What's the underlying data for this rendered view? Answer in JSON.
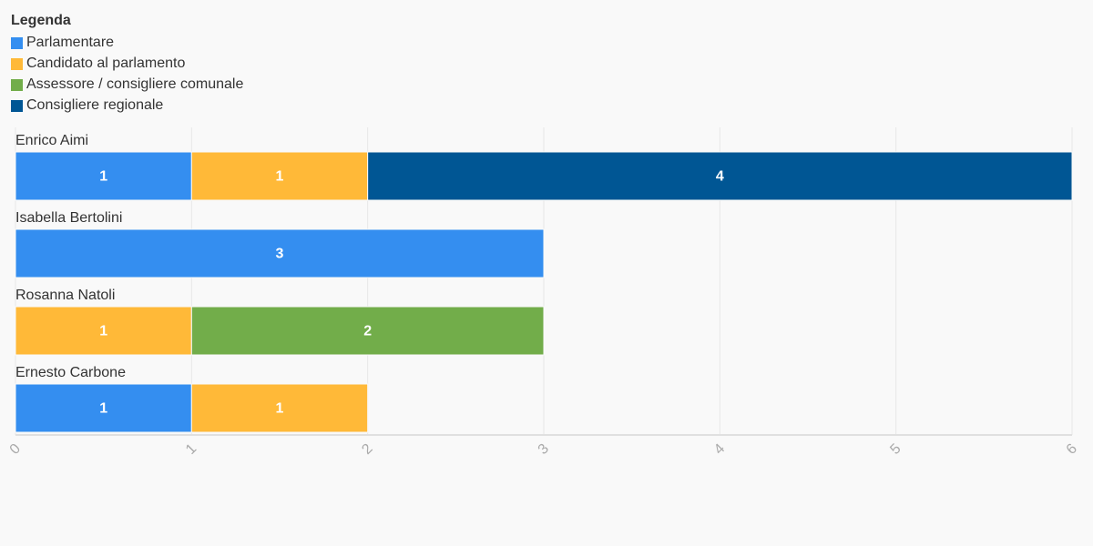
{
  "chart_data": {
    "type": "stacked-bar-horizontal",
    "legend_title": "Legenda",
    "categories": [
      "Enrico Aimi",
      "Isabella Bertolini",
      "Rosanna Natoli",
      "Ernesto Carbone"
    ],
    "series": [
      {
        "name": "Parlamentare",
        "color": "#348ef0",
        "values": [
          1,
          3,
          null,
          1
        ]
      },
      {
        "name": "Candidato al parlamento",
        "color": "#ffb938",
        "values": [
          1,
          null,
          1,
          1
        ]
      },
      {
        "name": "Assessore / consigliere comunale",
        "color": "#72ad4a",
        "values": [
          null,
          null,
          2,
          null
        ]
      },
      {
        "name": "Consigliere regionale",
        "color": "#005694",
        "values": [
          4,
          null,
          null,
          null
        ]
      }
    ],
    "xlim": [
      0,
      6
    ],
    "xticks": [
      0,
      1,
      2,
      3,
      4,
      5,
      6
    ],
    "grid": true,
    "legend": "top-left"
  }
}
